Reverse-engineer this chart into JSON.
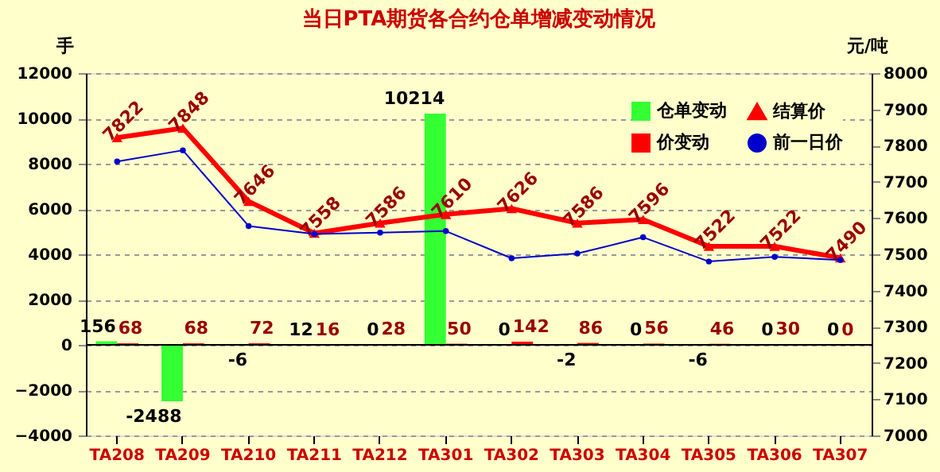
{
  "chart_data": {
    "type": "bar",
    "title": "当日PTA期货各合约仓单增减变动情况",
    "ylabel": "手",
    "y2label": "元/吨",
    "categories": [
      "TA208",
      "TA209",
      "TA210",
      "TA211",
      "TA212",
      "TA301",
      "TA302",
      "TA303",
      "TA304",
      "TA305",
      "TA306",
      "TA307"
    ],
    "series": [
      {
        "name": "仓单变动",
        "color": "#33ff33",
        "values": [
          156,
          -2488,
          -6,
          12,
          0,
          10214,
          0,
          -2,
          0,
          -6,
          0,
          0
        ],
        "value_labels": [
          "156",
          "-2488",
          "-6",
          "12",
          "0",
          "10214",
          "0",
          "-2",
          "0",
          "-6",
          "0",
          "0"
        ]
      },
      {
        "name": "价变动",
        "color": "#ff0000",
        "values": [
          68,
          68,
          72,
          16,
          28,
          50,
          142,
          86,
          56,
          46,
          30,
          0
        ],
        "value_labels": [
          "68",
          "68",
          "72",
          "16",
          "28",
          "50",
          "142",
          "86",
          "56",
          "46",
          "30",
          "0"
        ]
      },
      {
        "name": "结算价",
        "type": "line",
        "axis": "y2",
        "marker": "triangle",
        "color": "#ff0000",
        "values": [
          7822,
          7848,
          7646,
          7558,
          7586,
          7610,
          7626,
          7586,
          7596,
          7522,
          7522,
          7490
        ],
        "value_labels": [
          "7822",
          "7848",
          "7646",
          "7558",
          "7586",
          "7610",
          "7626",
          "7586",
          "7596",
          "7522",
          "7522",
          "7490"
        ]
      },
      {
        "name": "前一日价",
        "type": "line",
        "axis": "y2",
        "marker": "circle",
        "color": "#0000cc",
        "values": [
          7756,
          7787,
          7578,
          7556,
          7560,
          7564,
          7489,
          7502,
          7547,
          7480,
          7493,
          7484
        ]
      }
    ],
    "ylim": [
      -4000,
      12000
    ],
    "yticks": [
      -4000,
      -2000,
      0,
      2000,
      4000,
      6000,
      8000,
      10000,
      12000
    ],
    "y2lim": [
      7000,
      8000
    ],
    "y2ticks": [
      7000,
      7100,
      7200,
      7300,
      7400,
      7500,
      7600,
      7700,
      7800,
      7900,
      8000
    ],
    "grid": "y",
    "legend": "top right"
  }
}
